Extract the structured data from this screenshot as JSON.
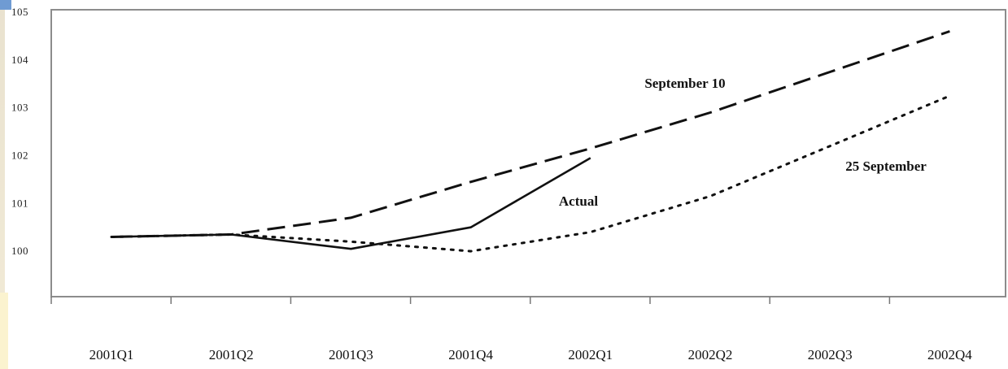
{
  "chart_data": {
    "type": "line",
    "title": "",
    "xlabel": "",
    "ylabel": "",
    "categories": [
      "2001Q1",
      "2001Q2",
      "2001Q3",
      "2001Q4",
      "2002Q1",
      "2002Q2",
      "2002Q3",
      "2002Q4"
    ],
    "y_ticks": [
      "105",
      "104",
      "103",
      "102",
      "101",
      "100"
    ],
    "ylim": [
      99.05,
      105.05
    ],
    "grid": false,
    "series": [
      {
        "key": "actual",
        "name": "Actual",
        "values": [
          100.3,
          100.35,
          100.05,
          100.5,
          101.95,
          null,
          null,
          null
        ]
      },
      {
        "key": "sep10",
        "name": "September 10",
        "values": [
          100.3,
          100.35,
          100.7,
          101.45,
          102.15,
          102.9,
          103.75,
          104.6
        ]
      },
      {
        "key": "sep25",
        "name": "25 September",
        "values": [
          100.3,
          100.35,
          100.2,
          100.0,
          100.4,
          101.15,
          102.2,
          103.25
        ]
      }
    ]
  }
}
